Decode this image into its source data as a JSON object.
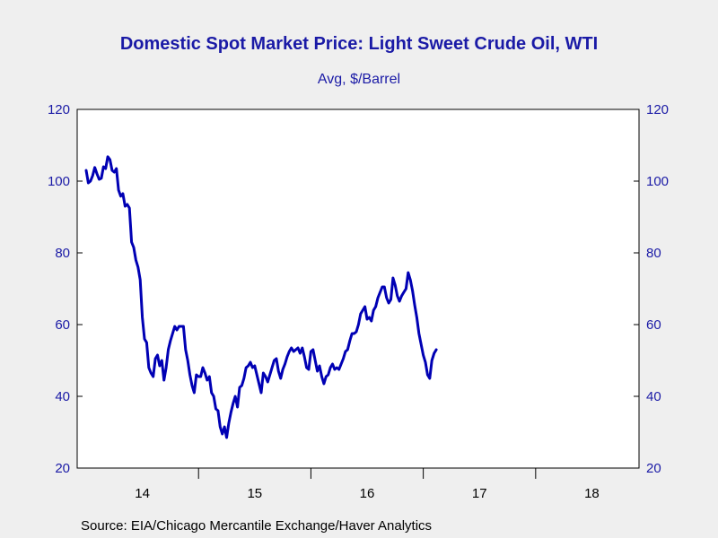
{
  "chart_data": {
    "type": "line",
    "title": "Domestic Spot Market Price: Light Sweet Crude Oil, WTI",
    "subtitle": "Avg, $/Barrel",
    "source": "Source:  EIA/Chicago Mercantile Exchange/Haver Analytics",
    "ylim": [
      20,
      120
    ],
    "yticks": [
      20,
      40,
      60,
      80,
      100,
      120
    ],
    "xlim": [
      2013.92,
      2018.92
    ],
    "x_tick_labels": [
      "14",
      "15",
      "16",
      "17",
      "18"
    ],
    "x_tick_label_positions": [
      2014.5,
      2015.5,
      2016.5,
      2017.5,
      2018.5
    ],
    "x_year_boundaries": [
      2015,
      2016,
      2017,
      2018
    ],
    "grid": false,
    "line_color": "#0000b4",
    "series": [
      {
        "frequency": "weekly",
        "start": "2014-01",
        "values": [
          103.0,
          99.5,
          100.0,
          101.5,
          103.8,
          102.0,
          100.5,
          100.8,
          104.0,
          103.5,
          106.8,
          106.0,
          103.0,
          102.5,
          103.5,
          97.5,
          95.8,
          96.5,
          93.0,
          93.5,
          92.5,
          83.0,
          81.5,
          78.0,
          76.0,
          72.5,
          62.0,
          56.0,
          55.0,
          48.0,
          46.5,
          45.5,
          50.5,
          51.5,
          48.5,
          50.0,
          44.5,
          48.0,
          53.0,
          55.5,
          57.5,
          59.5,
          58.5,
          59.5,
          59.5,
          59.5,
          53.0,
          50.0,
          46.0,
          43.0,
          41.0,
          46.0,
          45.5,
          45.5,
          48.0,
          46.5,
          44.5,
          45.5,
          41.0,
          40.0,
          36.5,
          36.0,
          31.5,
          29.5,
          31.5,
          28.5,
          32.5,
          35.5,
          38.0,
          40.0,
          37.0,
          42.5,
          43.0,
          45.0,
          48.0,
          48.5,
          49.5,
          48.0,
          48.5,
          46.0,
          43.5,
          41.0,
          46.5,
          45.5,
          44.0,
          46.0,
          48.0,
          50.0,
          50.5,
          47.0,
          45.0,
          47.5,
          49.0,
          51.0,
          52.5,
          53.5,
          52.5,
          53.0,
          53.5,
          52.0,
          53.5,
          51.0,
          48.0,
          47.5,
          52.5,
          53.0,
          50.0,
          47.0,
          48.5,
          45.5,
          43.5,
          45.5,
          46.0,
          48.0,
          49.0,
          47.5,
          48.0,
          47.5,
          49.0,
          50.5,
          52.5,
          53.0,
          55.5,
          57.5,
          57.5,
          58.0,
          60.0,
          63.0,
          64.0,
          65.0,
          61.5,
          62.0,
          61.0,
          64.0,
          65.0,
          67.5,
          69.0,
          70.5,
          70.5,
          67.5,
          66.0,
          67.0,
          73.0,
          71.0,
          68.0,
          66.5,
          68.0,
          69.0,
          70.0,
          74.5,
          72.5,
          69.5,
          65.5,
          62.0,
          57.5,
          54.5,
          51.5,
          49.5,
          46.0,
          45.0,
          50.0,
          52.0,
          53.0
        ]
      }
    ]
  }
}
